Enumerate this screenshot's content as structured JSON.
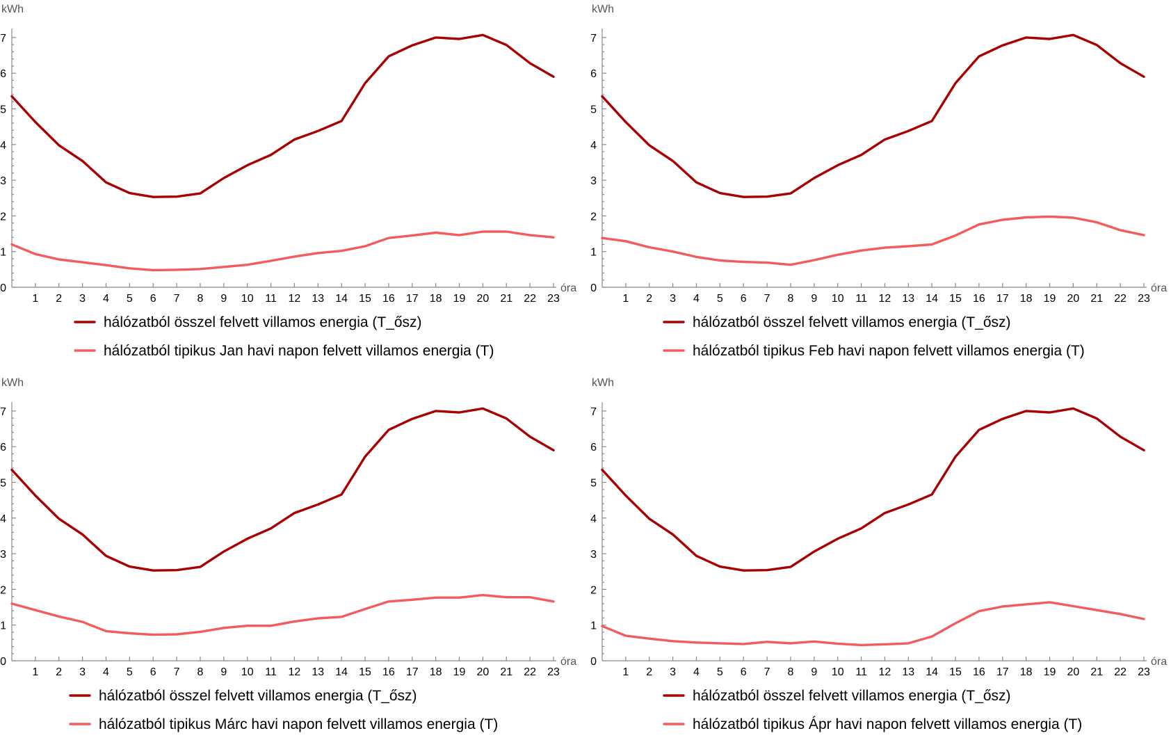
{
  "colors": {
    "dark_red": "#a80000",
    "light_red": "#f25c5c",
    "axis": "#888888"
  },
  "chart_data": [
    {
      "type": "line",
      "ylabel": "kWh",
      "xlabel": "óra",
      "ylim": [
        0,
        7.4
      ],
      "xlim": [
        0,
        23
      ],
      "yticks": [
        0,
        1,
        2,
        3,
        4,
        5,
        6,
        7
      ],
      "xticks": [
        1,
        2,
        3,
        4,
        5,
        6,
        7,
        8,
        9,
        10,
        11,
        12,
        13,
        14,
        15,
        16,
        17,
        18,
        19,
        20,
        21,
        22,
        23
      ],
      "x": [
        0,
        1,
        2,
        3,
        4,
        5,
        6,
        7,
        8,
        9,
        10,
        11,
        12,
        13,
        14,
        15,
        16,
        17,
        18,
        19,
        20,
        21,
        22,
        23
      ],
      "series": [
        {
          "name": "hálózatból összel felvett villamos energia (T_ősz)",
          "color": "#a80000",
          "values": [
            5.35,
            4.63,
            3.98,
            3.54,
            2.94,
            2.64,
            2.53,
            2.54,
            2.63,
            3.06,
            3.42,
            3.71,
            4.14,
            4.38,
            4.66,
            5.72,
            6.47,
            6.78,
            7.0,
            6.96,
            7.07,
            6.79,
            6.28,
            5.9
          ]
        },
        {
          "name": "hálózatból tipikus Jan havi napon felvett villamos energia (T)",
          "color": "#f25c5c",
          "values": [
            1.2,
            0.93,
            0.78,
            0.7,
            0.62,
            0.53,
            0.48,
            0.49,
            0.51,
            0.57,
            0.63,
            0.74,
            0.86,
            0.96,
            1.02,
            1.15,
            1.38,
            1.45,
            1.53,
            1.46,
            1.56,
            1.56,
            1.46,
            1.4
          ]
        }
      ]
    },
    {
      "type": "line",
      "ylabel": "kWh",
      "xlabel": "óra",
      "ylim": [
        0,
        7.4
      ],
      "xlim": [
        0,
        23
      ],
      "yticks": [
        0,
        1,
        2,
        3,
        4,
        5,
        6,
        7
      ],
      "xticks": [
        1,
        2,
        3,
        4,
        5,
        6,
        7,
        8,
        9,
        10,
        11,
        12,
        13,
        14,
        15,
        16,
        17,
        18,
        19,
        20,
        21,
        22,
        23
      ],
      "x": [
        0,
        1,
        2,
        3,
        4,
        5,
        6,
        7,
        8,
        9,
        10,
        11,
        12,
        13,
        14,
        15,
        16,
        17,
        18,
        19,
        20,
        21,
        22,
        23
      ],
      "series": [
        {
          "name": "hálózatból összel felvett villamos energia (T_ősz)",
          "color": "#a80000",
          "values": [
            5.35,
            4.63,
            3.98,
            3.54,
            2.94,
            2.64,
            2.53,
            2.54,
            2.63,
            3.06,
            3.42,
            3.71,
            4.14,
            4.38,
            4.66,
            5.72,
            6.47,
            6.78,
            7.0,
            6.96,
            7.07,
            6.79,
            6.28,
            5.9
          ]
        },
        {
          "name": "hálózatból tipikus Feb havi napon felvett villamos energia (T)",
          "color": "#f25c5c",
          "values": [
            1.38,
            1.29,
            1.12,
            1.0,
            0.85,
            0.75,
            0.71,
            0.69,
            0.63,
            0.76,
            0.91,
            1.03,
            1.11,
            1.15,
            1.2,
            1.45,
            1.76,
            1.89,
            1.96,
            1.98,
            1.95,
            1.82,
            1.6,
            1.46
          ]
        }
      ]
    },
    {
      "type": "line",
      "ylabel": "kWh",
      "xlabel": "óra",
      "ylim": [
        0,
        7.4
      ],
      "xlim": [
        0,
        23
      ],
      "yticks": [
        0,
        1,
        2,
        3,
        4,
        5,
        6,
        7
      ],
      "xticks": [
        1,
        2,
        3,
        4,
        5,
        6,
        7,
        8,
        9,
        10,
        11,
        12,
        13,
        14,
        15,
        16,
        17,
        18,
        19,
        20,
        21,
        22,
        23
      ],
      "x": [
        0,
        1,
        2,
        3,
        4,
        5,
        6,
        7,
        8,
        9,
        10,
        11,
        12,
        13,
        14,
        15,
        16,
        17,
        18,
        19,
        20,
        21,
        22,
        23
      ],
      "series": [
        {
          "name": "hálózatból összel felvett villamos energia (T_ősz)",
          "color": "#a80000",
          "values": [
            5.35,
            4.63,
            3.98,
            3.54,
            2.94,
            2.64,
            2.53,
            2.54,
            2.63,
            3.06,
            3.42,
            3.71,
            4.14,
            4.38,
            4.66,
            5.72,
            6.47,
            6.78,
            7.0,
            6.96,
            7.07,
            6.79,
            6.28,
            5.9
          ]
        },
        {
          "name": "hálózatból tipikus Márc havi napon felvett villamos energia (T)",
          "color": "#f25c5c",
          "values": [
            1.6,
            1.42,
            1.24,
            1.09,
            0.83,
            0.77,
            0.73,
            0.74,
            0.81,
            0.92,
            0.98,
            0.98,
            1.1,
            1.19,
            1.23,
            1.45,
            1.66,
            1.71,
            1.77,
            1.77,
            1.84,
            1.78,
            1.78,
            1.66
          ]
        }
      ]
    },
    {
      "type": "line",
      "ylabel": "kWh",
      "xlabel": "óra",
      "ylim": [
        0,
        7.4
      ],
      "xlim": [
        0,
        23
      ],
      "yticks": [
        0,
        1,
        2,
        3,
        4,
        5,
        6,
        7
      ],
      "xticks": [
        1,
        2,
        3,
        4,
        5,
        6,
        7,
        8,
        9,
        10,
        11,
        12,
        13,
        14,
        15,
        16,
        17,
        18,
        19,
        20,
        21,
        22,
        23
      ],
      "x": [
        0,
        1,
        2,
        3,
        4,
        5,
        6,
        7,
        8,
        9,
        10,
        11,
        12,
        13,
        14,
        15,
        16,
        17,
        18,
        19,
        20,
        21,
        22,
        23
      ],
      "series": [
        {
          "name": "hálózatból összel felvett villamos energia (T_ősz)",
          "color": "#a80000",
          "values": [
            5.35,
            4.63,
            3.98,
            3.54,
            2.94,
            2.64,
            2.53,
            2.54,
            2.63,
            3.06,
            3.42,
            3.71,
            4.14,
            4.38,
            4.66,
            5.72,
            6.47,
            6.78,
            7.0,
            6.96,
            7.07,
            6.79,
            6.28,
            5.9
          ]
        },
        {
          "name": "hálózatból tipikus Ápr havi napon felvett villamos energia (T)",
          "color": "#f25c5c",
          "values": [
            0.97,
            0.7,
            0.62,
            0.55,
            0.51,
            0.49,
            0.47,
            0.53,
            0.49,
            0.54,
            0.48,
            0.44,
            0.46,
            0.49,
            0.68,
            1.05,
            1.39,
            1.52,
            1.58,
            1.64,
            1.53,
            1.42,
            1.31,
            1.17
          ]
        }
      ]
    }
  ]
}
